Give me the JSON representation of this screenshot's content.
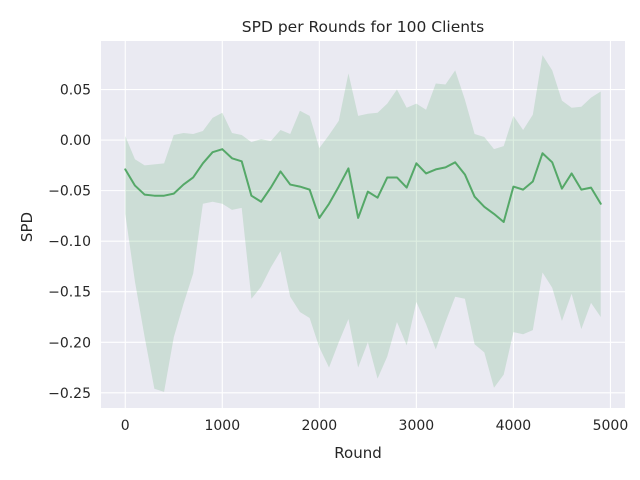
{
  "chart_data": {
    "type": "line",
    "title": "SPD per Rounds for 100 Clients",
    "xlabel": "Round",
    "ylabel": "SPD",
    "xlim": [
      -250,
      5150
    ],
    "ylim": [
      -0.265,
      0.098
    ],
    "grid": true,
    "x_ticks": [
      0,
      1000,
      2000,
      3000,
      4000,
      5000
    ],
    "x_tick_labels": [
      "0",
      "1000",
      "2000",
      "3000",
      "4000",
      "5000"
    ],
    "y_ticks": [
      0.05,
      0.0,
      -0.05,
      -0.1,
      -0.15,
      -0.2,
      -0.25
    ],
    "y_tick_labels": [
      "0.05",
      "0.00",
      "−0.05",
      "−0.10",
      "−0.15",
      "−0.20",
      "−0.25"
    ],
    "colors": {
      "line": "#55a868",
      "band": "#55a868",
      "plot_background": "#eaeaf2",
      "grid": "#ffffff"
    },
    "series": [
      {
        "x": [
          0,
          100,
          200,
          300,
          400,
          500,
          600,
          700,
          800,
          900,
          1000,
          1100,
          1200,
          1300,
          1400,
          1500,
          1600,
          1700,
          1800,
          1900,
          2000,
          2100,
          2200,
          2300,
          2400,
          2500,
          2600,
          2700,
          2800,
          2900,
          3000,
          3100,
          3200,
          3300,
          3400,
          3500,
          3600,
          3700,
          3800,
          3900,
          4000,
          4100,
          4200,
          4300,
          4400,
          4500,
          4600,
          4700,
          4800,
          4900
        ],
        "values": [
          -0.029,
          -0.045,
          -0.054,
          -0.055,
          -0.055,
          -0.053,
          -0.044,
          -0.037,
          -0.023,
          -0.012,
          -0.009,
          -0.018,
          -0.021,
          -0.055,
          -0.061,
          -0.047,
          -0.031,
          -0.044,
          -0.046,
          -0.049,
          -0.077,
          -0.063,
          -0.046,
          -0.028,
          -0.077,
          -0.051,
          -0.057,
          -0.037,
          -0.037,
          -0.047,
          -0.023,
          -0.033,
          -0.029,
          -0.027,
          -0.022,
          -0.034,
          -0.056,
          -0.066,
          -0.073,
          -0.081,
          -0.046,
          -0.049,
          -0.041,
          -0.013,
          -0.022,
          -0.048,
          -0.033,
          -0.049,
          -0.047,
          -0.063
        ],
        "lower": [
          -0.073,
          -0.14,
          -0.195,
          -0.246,
          -0.249,
          -0.195,
          -0.162,
          -0.132,
          -0.063,
          -0.061,
          -0.063,
          -0.069,
          -0.067,
          -0.157,
          -0.145,
          -0.126,
          -0.11,
          -0.155,
          -0.17,
          -0.176,
          -0.205,
          -0.225,
          -0.2,
          -0.177,
          -0.225,
          -0.2,
          -0.236,
          -0.214,
          -0.18,
          -0.203,
          -0.16,
          -0.182,
          -0.207,
          -0.18,
          -0.155,
          -0.157,
          -0.202,
          -0.21,
          -0.245,
          -0.232,
          -0.19,
          -0.192,
          -0.188,
          -0.131,
          -0.146,
          -0.179,
          -0.152,
          -0.187,
          -0.161,
          -0.175
        ],
        "upper": [
          0.004,
          -0.019,
          -0.025,
          -0.024,
          -0.023,
          0.005,
          0.007,
          0.006,
          0.009,
          0.022,
          0.027,
          0.007,
          0.005,
          -0.002,
          0.001,
          -0.001,
          0.01,
          0.006,
          0.029,
          0.024,
          -0.008,
          0.005,
          0.019,
          0.066,
          0.024,
          0.026,
          0.027,
          0.036,
          0.05,
          0.032,
          0.036,
          0.03,
          0.056,
          0.055,
          0.069,
          0.04,
          0.006,
          0.003,
          -0.009,
          -0.006,
          0.024,
          0.01,
          0.025,
          0.084,
          0.069,
          0.039,
          0.032,
          0.033,
          0.042,
          0.048
        ]
      }
    ]
  }
}
